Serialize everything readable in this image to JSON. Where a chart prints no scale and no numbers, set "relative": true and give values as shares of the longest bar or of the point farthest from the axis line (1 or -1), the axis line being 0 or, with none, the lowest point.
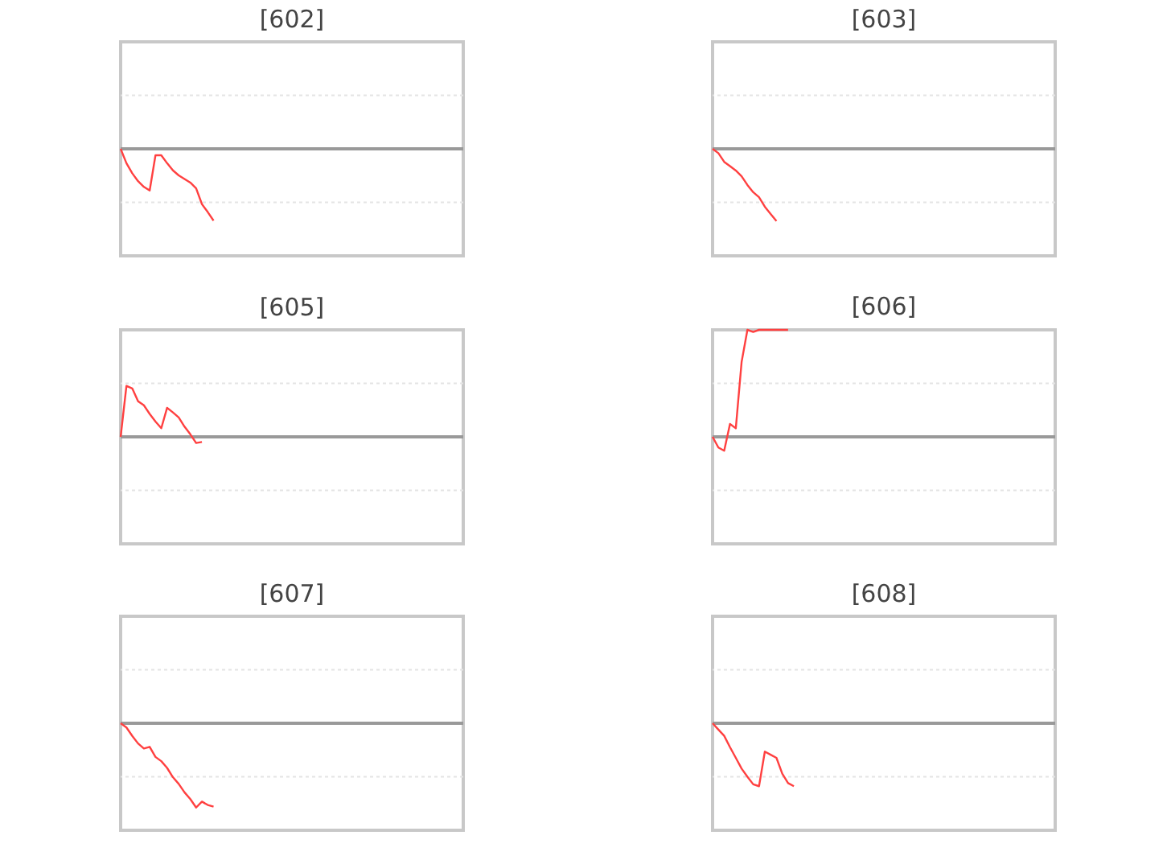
{
  "chart_data": [
    {
      "type": "line",
      "title": "[602]",
      "relative": true,
      "ref_lines": [
        {
          "axis": "y",
          "value": -0.745,
          "color": "#e4e4e4",
          "line_style": "dotted"
        },
        {
          "axis": "y",
          "value": 0.745,
          "color": "#e4e4e4",
          "line_style": "dotted"
        }
      ],
      "color": "#ff4040",
      "categories": [
        null,
        null,
        null,
        null,
        null,
        null,
        null,
        null,
        null,
        null,
        null,
        null,
        null,
        null,
        null,
        null,
        null,
        null,
        null,
        null,
        null,
        null,
        null,
        null,
        null,
        null,
        null,
        null,
        null,
        null,
        null,
        null,
        null,
        null,
        null,
        null,
        null,
        null,
        null,
        null,
        null,
        null,
        null,
        null,
        null,
        null,
        null,
        null,
        null,
        null,
        null,
        null,
        null,
        null,
        null,
        null,
        null,
        null,
        null,
        null
      ],
      "values": [
        0,
        -0.2,
        -0.34,
        -0.45,
        -0.53,
        -0.58,
        -0.09,
        -0.09,
        -0.2,
        -0.3,
        -0.37,
        -0.42,
        -0.47,
        -0.55,
        -0.77,
        -0.88,
        -1,
        null,
        null,
        null,
        null,
        null,
        null,
        null,
        null,
        null,
        null,
        null,
        null,
        null,
        null,
        null,
        null,
        null,
        null,
        null,
        null,
        null,
        null,
        null,
        null,
        null,
        null,
        null,
        null,
        null,
        null,
        null,
        null,
        null,
        null,
        null,
        null,
        null,
        null,
        null,
        null,
        null,
        null,
        null
      ]
    },
    {
      "type": "line",
      "title": "[603]",
      "relative": true,
      "ref_lines": [
        {
          "axis": "y",
          "value": -0.74,
          "color": "#e4e4e4",
          "line_style": "dotted"
        },
        {
          "axis": "y",
          "value": 0.74,
          "color": "#e4e4e4",
          "line_style": "dotted"
        }
      ],
      "color": "#ff4040",
      "categories": [
        null,
        null,
        null,
        null,
        null,
        null,
        null,
        null,
        null,
        null,
        null,
        null,
        null,
        null,
        null,
        null,
        null,
        null,
        null,
        null,
        null,
        null,
        null,
        null,
        null,
        null,
        null,
        null,
        null,
        null,
        null,
        null,
        null,
        null,
        null,
        null,
        null,
        null,
        null,
        null,
        null,
        null,
        null,
        null,
        null,
        null,
        null,
        null,
        null,
        null,
        null,
        null,
        null,
        null,
        null,
        null,
        null,
        null,
        null,
        null
      ],
      "values": [
        0,
        -0.06,
        -0.18,
        -0.24,
        -0.3,
        -0.38,
        -0.5,
        -0.6,
        -0.67,
        -0.8,
        -0.9,
        -1,
        null,
        null,
        null,
        null,
        null,
        null,
        null,
        null,
        null,
        null,
        null,
        null,
        null,
        null,
        null,
        null,
        null,
        null,
        null,
        null,
        null,
        null,
        null,
        null,
        null,
        null,
        null,
        null,
        null,
        null,
        null,
        null,
        null,
        null,
        null,
        null,
        null,
        null,
        null,
        null,
        null,
        null,
        null,
        null,
        null,
        null,
        null,
        null
      ]
    },
    {
      "type": "line",
      "title": "[605]",
      "relative": true,
      "ref_lines": [
        {
          "axis": "y",
          "value": -1.05,
          "color": "#e4e4e4",
          "line_style": "dotted"
        },
        {
          "axis": "y",
          "value": 1.05,
          "color": "#e4e4e4",
          "line_style": "dotted"
        }
      ],
      "color": "#ff4040",
      "categories": [
        null,
        null,
        null,
        null,
        null,
        null,
        null,
        null,
        null,
        null,
        null,
        null,
        null,
        null,
        null,
        null,
        null,
        null,
        null,
        null,
        null,
        null,
        null,
        null,
        null,
        null,
        null,
        null,
        null,
        null,
        null,
        null,
        null,
        null,
        null,
        null,
        null,
        null,
        null,
        null,
        null,
        null,
        null,
        null,
        null,
        null,
        null,
        null,
        null,
        null,
        null,
        null,
        null,
        null,
        null,
        null,
        null,
        null,
        null,
        null
      ],
      "values": [
        0,
        1,
        0.95,
        0.7,
        0.62,
        0.45,
        0.3,
        0.17,
        0.57,
        0.48,
        0.38,
        0.2,
        0.05,
        -0.12,
        -0.1,
        null,
        null,
        null,
        null,
        null,
        null,
        null,
        null,
        null,
        null,
        null,
        null,
        null,
        null,
        null,
        null,
        null,
        null,
        null,
        null,
        null,
        null,
        null,
        null,
        null,
        null,
        null,
        null,
        null,
        null,
        null,
        null,
        null,
        null,
        null,
        null,
        null,
        null,
        null,
        null,
        null,
        null,
        null,
        null,
        null
      ]
    },
    {
      "type": "line",
      "title": "[606]",
      "relative": true,
      "ref_lines": [
        {
          "axis": "y",
          "value": -0.5,
          "color": "#e4e4e4",
          "line_style": "dotted"
        },
        {
          "axis": "y",
          "value": 0.5,
          "color": "#e4e4e4",
          "line_style": "dotted"
        }
      ],
      "color": "#ff4040",
      "categories": [
        null,
        null,
        null,
        null,
        null,
        null,
        null,
        null,
        null,
        null,
        null,
        null,
        null,
        null,
        null,
        null,
        null,
        null,
        null,
        null,
        null,
        null,
        null,
        null,
        null,
        null,
        null,
        null,
        null,
        null,
        null,
        null,
        null,
        null,
        null,
        null,
        null,
        null,
        null,
        null,
        null,
        null,
        null,
        null,
        null,
        null,
        null,
        null,
        null,
        null,
        null,
        null,
        null,
        null,
        null,
        null,
        null,
        null,
        null,
        null
      ],
      "values": [
        0,
        -0.1,
        -0.13,
        0.12,
        0.08,
        0.7,
        1,
        0.98,
        1,
        1,
        1,
        1,
        1,
        1,
        null,
        null,
        null,
        null,
        null,
        null,
        null,
        null,
        null,
        null,
        null,
        null,
        null,
        null,
        null,
        null,
        null,
        null,
        null,
        null,
        null,
        null,
        null,
        null,
        null,
        null,
        null,
        null,
        null,
        null,
        null,
        null,
        null,
        null,
        null,
        null,
        null,
        null,
        null,
        null,
        null,
        null,
        null,
        null,
        null,
        null
      ]
    },
    {
      "type": "line",
      "title": "[607]",
      "relative": true,
      "ref_lines": [
        {
          "axis": "y",
          "value": -0.635,
          "color": "#e4e4e4",
          "line_style": "dotted"
        },
        {
          "axis": "y",
          "value": 0.635,
          "color": "#e4e4e4",
          "line_style": "dotted"
        }
      ],
      "color": "#ff4040",
      "categories": [
        null,
        null,
        null,
        null,
        null,
        null,
        null,
        null,
        null,
        null,
        null,
        null,
        null,
        null,
        null,
        null,
        null,
        null,
        null,
        null,
        null,
        null,
        null,
        null,
        null,
        null,
        null,
        null,
        null,
        null,
        null,
        null,
        null,
        null,
        null,
        null,
        null,
        null,
        null,
        null,
        null,
        null,
        null,
        null,
        null,
        null,
        null,
        null,
        null,
        null,
        null,
        null,
        null,
        null,
        null,
        null,
        null,
        null,
        null,
        null
      ],
      "values": [
        0,
        -0.05,
        -0.15,
        -0.24,
        -0.3,
        -0.28,
        -0.4,
        -0.45,
        -0.53,
        -0.64,
        -0.72,
        -0.82,
        -0.9,
        -1,
        -0.93,
        -0.97,
        -0.99,
        null,
        null,
        null,
        null,
        null,
        null,
        null,
        null,
        null,
        null,
        null,
        null,
        null,
        null,
        null,
        null,
        null,
        null,
        null,
        null,
        null,
        null,
        null,
        null,
        null,
        null,
        null,
        null,
        null,
        null,
        null,
        null,
        null,
        null,
        null,
        null,
        null,
        null,
        null,
        null,
        null,
        null,
        null
      ]
    },
    {
      "type": "line",
      "title": "[608]",
      "relative": true,
      "ref_lines": [
        {
          "axis": "y",
          "value": -0.85,
          "color": "#e4e4e4",
          "line_style": "dotted"
        },
        {
          "axis": "y",
          "value": 0.85,
          "color": "#e4e4e4",
          "line_style": "dotted"
        }
      ],
      "color": "#ff4040",
      "categories": [
        null,
        null,
        null,
        null,
        null,
        null,
        null,
        null,
        null,
        null,
        null,
        null,
        null,
        null,
        null,
        null,
        null,
        null,
        null,
        null,
        null,
        null,
        null,
        null,
        null,
        null,
        null,
        null,
        null,
        null,
        null,
        null,
        null,
        null,
        null,
        null,
        null,
        null,
        null,
        null,
        null,
        null,
        null,
        null,
        null,
        null,
        null,
        null,
        null,
        null,
        null,
        null,
        null,
        null,
        null,
        null,
        null,
        null,
        null,
        null
      ],
      "values": [
        0,
        -0.1,
        -0.2,
        -0.38,
        -0.55,
        -0.72,
        -0.85,
        -0.97,
        -1,
        -0.45,
        -0.5,
        -0.55,
        -0.8,
        -0.95,
        -1,
        null,
        null,
        null,
        null,
        null,
        null,
        null,
        null,
        null,
        null,
        null,
        null,
        null,
        null,
        null,
        null,
        null,
        null,
        null,
        null,
        null,
        null,
        null,
        null,
        null,
        null,
        null,
        null,
        null,
        null,
        null,
        null,
        null,
        null,
        null,
        null,
        null,
        null,
        null,
        null,
        null,
        null,
        null,
        null,
        null
      ]
    }
  ]
}
